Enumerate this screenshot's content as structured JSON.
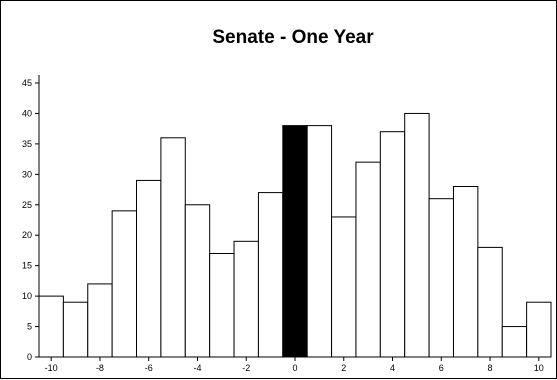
{
  "chart_data": {
    "type": "bar",
    "title": "Senate - One Year",
    "xlabel": "",
    "ylabel": "",
    "categories": [
      -10,
      -9,
      -8,
      -7,
      -6,
      -5,
      -4,
      -3,
      -2,
      -1,
      0,
      1,
      2,
      3,
      4,
      5,
      6,
      7,
      8,
      9,
      10
    ],
    "values": [
      10,
      9,
      12,
      24,
      29,
      36,
      25,
      17,
      19,
      27,
      38,
      38,
      23,
      32,
      37,
      40,
      26,
      28,
      18,
      5,
      9
    ],
    "highlight_category": 0,
    "ylim": [
      0,
      45
    ],
    "xlim": [
      -10,
      10
    ],
    "y_ticks": [
      0,
      5,
      10,
      15,
      20,
      25,
      30,
      35,
      40,
      45
    ],
    "x_ticks": [
      -10,
      -8,
      -6,
      -4,
      -2,
      0,
      2,
      4,
      6,
      8,
      10
    ],
    "grid": false,
    "legend": "none",
    "colors": {
      "bar_fill": "#ffffff",
      "bar_highlight": "#000000",
      "bar_stroke": "#000000",
      "axis": "#000000"
    }
  }
}
